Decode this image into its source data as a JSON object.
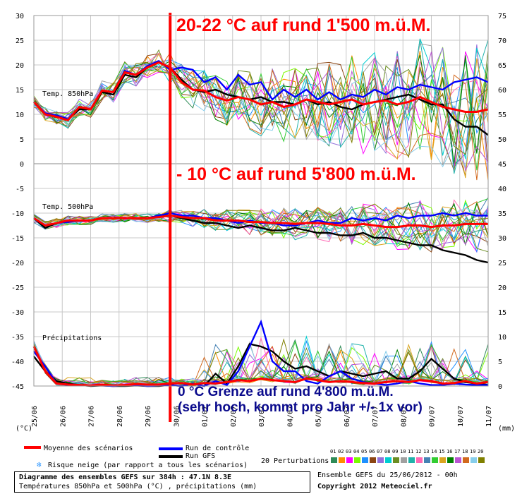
{
  "chart_data": {
    "type": "line",
    "title": "Diagramme des ensembles GEFS sur 384h : 47.1N 8.3E",
    "subtitle": "Températures 850hPa et 500hPa (°C) , précipitations (mm)",
    "x": [
      "25/06",
      "26/06",
      "27/06",
      "28/06",
      "29/06",
      "30/06",
      "01/07",
      "02/07",
      "03/07",
      "04/07",
      "05/07",
      "06/07",
      "07/07",
      "08/07",
      "09/07",
      "10/07",
      "11/07"
    ],
    "y_left": {
      "label": "(°C)",
      "ticks": [
        30,
        25,
        20,
        15,
        10,
        5,
        0,
        -5,
        -10,
        -15,
        -20,
        -25,
        -30,
        -35,
        -40,
        -45
      ],
      "ylim": [
        -45,
        30
      ]
    },
    "y_right": {
      "label": "(mm)",
      "ticks": [
        75,
        70,
        65,
        60,
        55,
        50,
        45,
        40,
        35,
        30,
        25,
        20,
        15,
        10,
        5,
        0
      ]
    },
    "panels": {
      "t850": "Temp. 850hPa",
      "t500": "Temp. 500hPa",
      "precip": "Précipitations"
    },
    "series": [
      {
        "name": "Moyenne des scénarios",
        "color": "#ff0000",
        "t850": [
          12.5,
          10,
          9.5,
          8.8,
          11.5,
          11,
          14.8,
          14.5,
          18.5,
          18,
          19.5,
          20.5,
          19.5,
          16.5,
          15,
          14.8,
          13.5,
          12.8,
          13.5,
          13,
          12,
          12.5,
          11.5,
          12,
          13,
          12.5,
          12,
          12.5,
          13,
          12,
          12.5,
          12.8,
          12,
          12.5,
          13.5,
          12.5,
          11.5,
          11,
          10.5,
          10.5,
          11
        ],
        "t500": [
          -11,
          -12.5,
          -12,
          -11.5,
          -11.5,
          -11.5,
          -11,
          -11,
          -11,
          -11,
          -11,
          -10.8,
          -10.5,
          -10.8,
          -11,
          -11,
          -11.5,
          -11.5,
          -11.5,
          -11.8,
          -11.8,
          -12,
          -12,
          -12.2,
          -12,
          -12,
          -12.2,
          -12.5,
          -12.5,
          -12.2,
          -12.5,
          -12.8,
          -12.8,
          -12.5,
          -12.5,
          -12.8,
          -12.5,
          -12.5,
          -12.2,
          -12.2,
          -12.2
        ],
        "precip": [
          8,
          3,
          0.5,
          0.3,
          0.2,
          0.1,
          0.3,
          0.1,
          0.2,
          0.4,
          0.3,
          0.3,
          0.5,
          0.6,
          0.3,
          0.6,
          0.5,
          0.8,
          1.2,
          1,
          1.5,
          1.2,
          1,
          0.8,
          1.5,
          1.2,
          0.8,
          1,
          0.8,
          0.6,
          0.5,
          0.8,
          1,
          0.8,
          1.2,
          1,
          0.5,
          0.6,
          1,
          0.5,
          0.8
        ]
      },
      {
        "name": "Run de contrôle",
        "color": "#0000ff",
        "t850": [
          12.5,
          10.2,
          9.8,
          9,
          11.5,
          11,
          14.8,
          14.5,
          18.8,
          18,
          19.8,
          20.8,
          19,
          19.5,
          19,
          16.5,
          17.5,
          15,
          18,
          16,
          16.5,
          13,
          15,
          13.5,
          15,
          13,
          14.5,
          13,
          14,
          13.5,
          15,
          14,
          15.5,
          15,
          16,
          15.5,
          15,
          16.5,
          17,
          17.5,
          16.5
        ],
        "t500": [
          -11,
          -12.5,
          -12,
          -11.8,
          -11.5,
          -11.5,
          -11,
          -11,
          -11,
          -11,
          -11,
          -10.5,
          -10,
          -10.5,
          -10.5,
          -11,
          -11,
          -11.5,
          -12,
          -11.5,
          -12,
          -12,
          -12.5,
          -12.5,
          -12,
          -11.5,
          -12,
          -12,
          -11,
          -11.5,
          -11,
          -11.5,
          -10.5,
          -11,
          -10.5,
          -10.5,
          -10,
          -10.5,
          -10,
          -10.5,
          -10.5
        ],
        "precip": [
          7,
          4,
          0.5,
          0.2,
          0.2,
          0.1,
          0.1,
          0,
          0.2,
          0.2,
          0,
          0.1,
          0.2,
          0,
          0.5,
          0,
          1,
          0.2,
          3,
          8,
          13,
          5,
          3,
          3,
          1,
          0.5,
          2,
          3,
          1.5,
          0.8,
          0.5,
          0.2,
          0.5,
          1,
          0.5,
          0.2,
          0.2,
          0.5,
          0.3,
          0.2,
          0.2
        ]
      },
      {
        "name": "Run GFS",
        "color": "#000000",
        "t850": [
          12.5,
          10,
          9.8,
          9,
          11,
          11,
          14.5,
          14,
          18,
          17.5,
          19.5,
          20.5,
          19.5,
          17,
          15,
          14.5,
          15,
          14,
          13.5,
          13,
          13.5,
          12.5,
          12.5,
          12,
          13,
          12,
          12.5,
          11.5,
          11,
          12,
          12.5,
          13,
          13.5,
          14,
          13,
          12,
          12,
          9,
          7.5,
          7.5,
          5.8
        ],
        "t500": [
          -11,
          -13,
          -12,
          -11.5,
          -11.5,
          -11.5,
          -11,
          -11,
          -11,
          -11,
          -11,
          -10.5,
          -10.5,
          -11,
          -11.5,
          -12,
          -12,
          -12.5,
          -13,
          -12.5,
          -13,
          -13.5,
          -13.5,
          -13,
          -13.5,
          -14,
          -14,
          -14.5,
          -14.5,
          -14,
          -15,
          -15,
          -15.5,
          -16,
          -16.5,
          -16.5,
          -17.5,
          -18,
          -18.5,
          -19.5,
          -20
        ],
        "precip": [
          6,
          3,
          1,
          0.5,
          0.2,
          0,
          0.1,
          0,
          0,
          0.1,
          0,
          0,
          0.2,
          0,
          0.5,
          0,
          2.5,
          0.5,
          4,
          8.5,
          8,
          7,
          5,
          3.5,
          4,
          3,
          2,
          3,
          2.5,
          2,
          2.5,
          3,
          1.5,
          1.5,
          3,
          5.5,
          3.5,
          1.5,
          0.8,
          0.5,
          0.2
        ]
      }
    ],
    "perturbations_count": 20,
    "perturbation_colors": [
      "#2e8b57",
      "#ff8c00",
      "#ff00ff",
      "#7cfc00",
      "#1e90ff",
      "#8b4513",
      "#9370db",
      "#00ced1",
      "#6b8e23",
      "#a0a0a0",
      "#20b2aa",
      "#ff69b4",
      "#4682b4",
      "#32cd32",
      "#daa520",
      "#008000",
      "#ba55d3",
      "#d2691e",
      "#87ceeb",
      "#808000"
    ],
    "vertical_marker": {
      "x_index": 12,
      "color": "#ff0000"
    },
    "grid": true
  },
  "annotations": {
    "a1": "20-22 °C auf rund 1'500 m.ü.M.",
    "a2": "- 10 °C auf rund 5'800 m.ü.M.",
    "a3_line1": "0 °C Grenze auf rund 4'800 m.ü.M.",
    "a3_line2": "(sehr hoch, kommt pro Jahr +/- 1x vor)"
  },
  "legend": {
    "mean": "Moyenne des scénarios",
    "control": "Run de contrôle",
    "gfs": "Run GFS",
    "snow": "Risque neige (par rapport a tous les scénarios)",
    "perturbations": "20 Perturbations",
    "pert_numbers": [
      "01",
      "02",
      "03",
      "04",
      "05",
      "06",
      "07",
      "08",
      "09",
      "10",
      "11",
      "12",
      "13",
      "14",
      "15",
      "16",
      "17",
      "18",
      "19",
      "20"
    ]
  },
  "footer": {
    "title_line1": "Diagramme des ensembles GEFS sur 384h : 47.1N 8.3E",
    "title_line2": "Températures 850hPa et 500hPa (°C) , précipitations (mm)",
    "run_info": "Ensemble GEFS du 25/06/2012 - 00h",
    "copyright": "Copyright 2012 Meteociel.fr"
  }
}
